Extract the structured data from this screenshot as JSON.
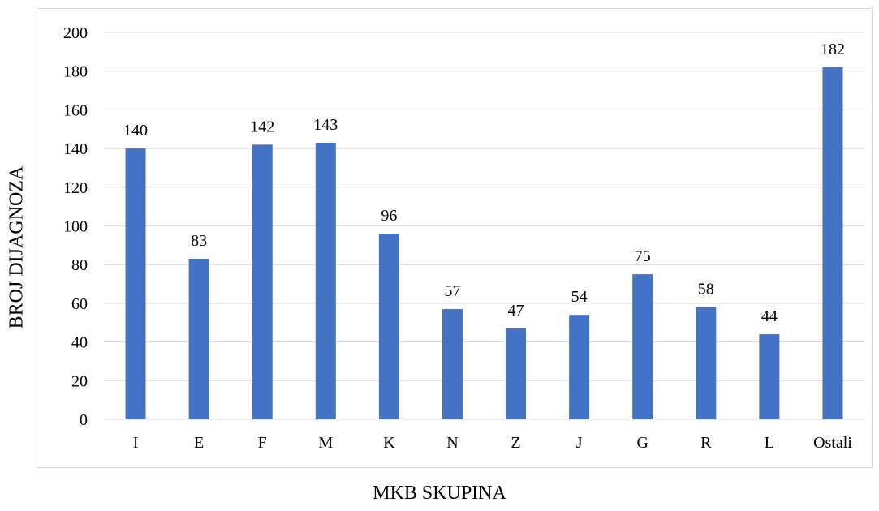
{
  "chart_data": {
    "type": "bar",
    "categories": [
      "I",
      "E",
      "F",
      "M",
      "K",
      "N",
      "Z",
      "J",
      "G",
      "R",
      "L",
      "Ostali"
    ],
    "values": [
      140,
      83,
      142,
      143,
      96,
      57,
      47,
      54,
      75,
      58,
      44,
      182
    ],
    "xlabel": "MKB SKUPINA",
    "ylabel": "BROJ DIJAGNOZA",
    "ylim": [
      0,
      200
    ],
    "yticks": [
      0,
      20,
      40,
      60,
      80,
      100,
      120,
      140,
      160,
      180,
      200
    ],
    "grid": true,
    "data_labels": true,
    "bar_color": "#4472c4",
    "grid_color": "#d9d9d9"
  }
}
